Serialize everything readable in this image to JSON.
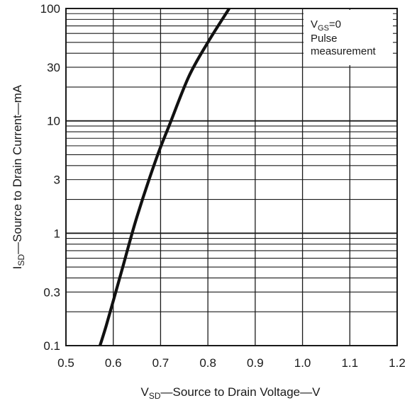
{
  "chart_data": {
    "type": "line",
    "title": "",
    "xlabel_parts": {
      "sym": "V",
      "sub": "SD",
      "rest": "—Source to Drain Voltage—V"
    },
    "ylabel_parts": {
      "sym": "I",
      "sub": "SD",
      "rest": "—Source to Drain Current—mA"
    },
    "x_scale": "linear",
    "y_scale": "log",
    "xlim": [
      0.5,
      1.2
    ],
    "ylim": [
      0.1,
      100
    ],
    "grid": true,
    "x_ticks": [
      0.5,
      0.6,
      0.7,
      0.8,
      0.9,
      1.0,
      1.1,
      1.2
    ],
    "x_tick_labels": [
      "0.5",
      "0.6",
      "0.7",
      "0.8",
      "0.9",
      "1.0",
      "1.1",
      "1.2"
    ],
    "y_ticks": [
      0.1,
      0.3,
      1,
      3,
      10,
      30,
      100
    ],
    "y_tick_labels": [
      "0.1",
      "0.3",
      "1",
      "3",
      "10",
      "30",
      "100"
    ],
    "legend": {
      "placement": "top-right",
      "vgs": {
        "sym": "V",
        "sub": "GS",
        "rest": "=0"
      },
      "line2": "Pulse",
      "line3": "measurement"
    },
    "series": [
      {
        "x": [
          0.572,
          0.585,
          0.6,
          0.62,
          0.65,
          0.69,
          0.72,
          0.76,
          0.8,
          0.845
        ],
        "y": [
          0.1,
          0.15,
          0.25,
          0.5,
          1.4,
          4.5,
          9.5,
          25,
          50,
          100
        ]
      }
    ]
  }
}
